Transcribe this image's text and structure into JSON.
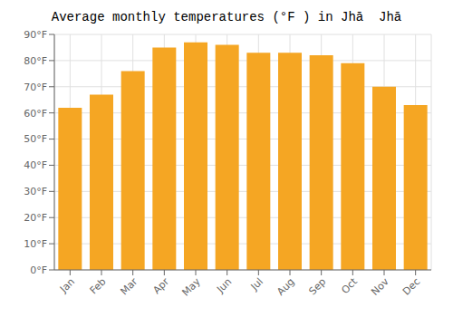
{
  "chart_data": {
    "type": "bar",
    "title": "Average monthly temperatures (°F ) in Jhā  Jhā",
    "categories": [
      "Jan",
      "Feb",
      "Mar",
      "Apr",
      "May",
      "Jun",
      "Jul",
      "Aug",
      "Sep",
      "Oct",
      "Nov",
      "Dec"
    ],
    "values": [
      62,
      67,
      76,
      85,
      87,
      86,
      83,
      83,
      82,
      79,
      70,
      63
    ],
    "color": "#F5A623",
    "ylim": [
      0,
      90
    ],
    "yticks": [
      {
        "value": 0,
        "label": "0°F"
      },
      {
        "value": 10,
        "label": "10°F"
      },
      {
        "value": 20,
        "label": "20°F"
      },
      {
        "value": 30,
        "label": "30°F"
      },
      {
        "value": 40,
        "label": "40°F"
      },
      {
        "value": 50,
        "label": "50°F"
      },
      {
        "value": 60,
        "label": "60°F"
      },
      {
        "value": 70,
        "label": "70°F"
      },
      {
        "value": 80,
        "label": "80°F"
      },
      {
        "value": 90,
        "label": "90°F"
      }
    ],
    "grid": true
  }
}
